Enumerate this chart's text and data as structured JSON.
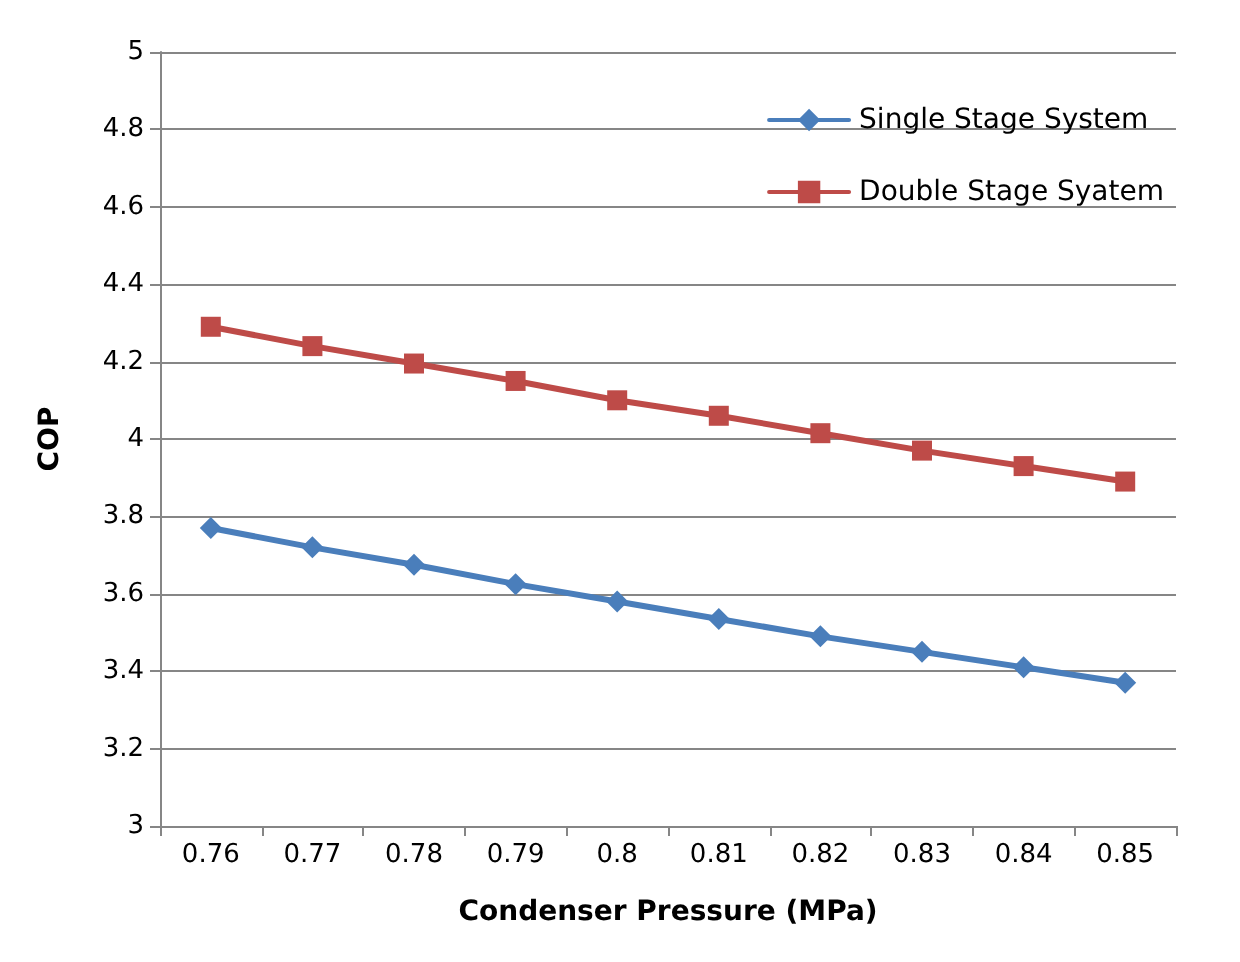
{
  "chart_data": {
    "type": "line",
    "xlabel": "Condenser Pressure (MPa)",
    "ylabel": "COP",
    "categories": [
      "0.76",
      "0.77",
      "0.78",
      "0.79",
      "0.8",
      "0.81",
      "0.82",
      "0.83",
      "0.84",
      "0.85"
    ],
    "series": [
      {
        "name": "Single Stage System",
        "color": "#4a7ebb",
        "marker": "diamond",
        "values": [
          3.77,
          3.72,
          3.675,
          3.625,
          3.58,
          3.535,
          3.49,
          3.45,
          3.41,
          3.37
        ]
      },
      {
        "name": "Double Stage Syatem",
        "color": "#be4b48",
        "marker": "square",
        "values": [
          4.29,
          4.24,
          4.195,
          4.15,
          4.1,
          4.06,
          4.015,
          3.97,
          3.93,
          3.89
        ]
      }
    ],
    "ylim": [
      3,
      5
    ],
    "yticks": [
      3,
      3.2,
      3.4,
      3.6,
      3.8,
      4,
      4.2,
      4.4,
      4.6,
      4.8,
      5
    ],
    "grid": "y",
    "legend": "top right",
    "line_style": "solid"
  }
}
